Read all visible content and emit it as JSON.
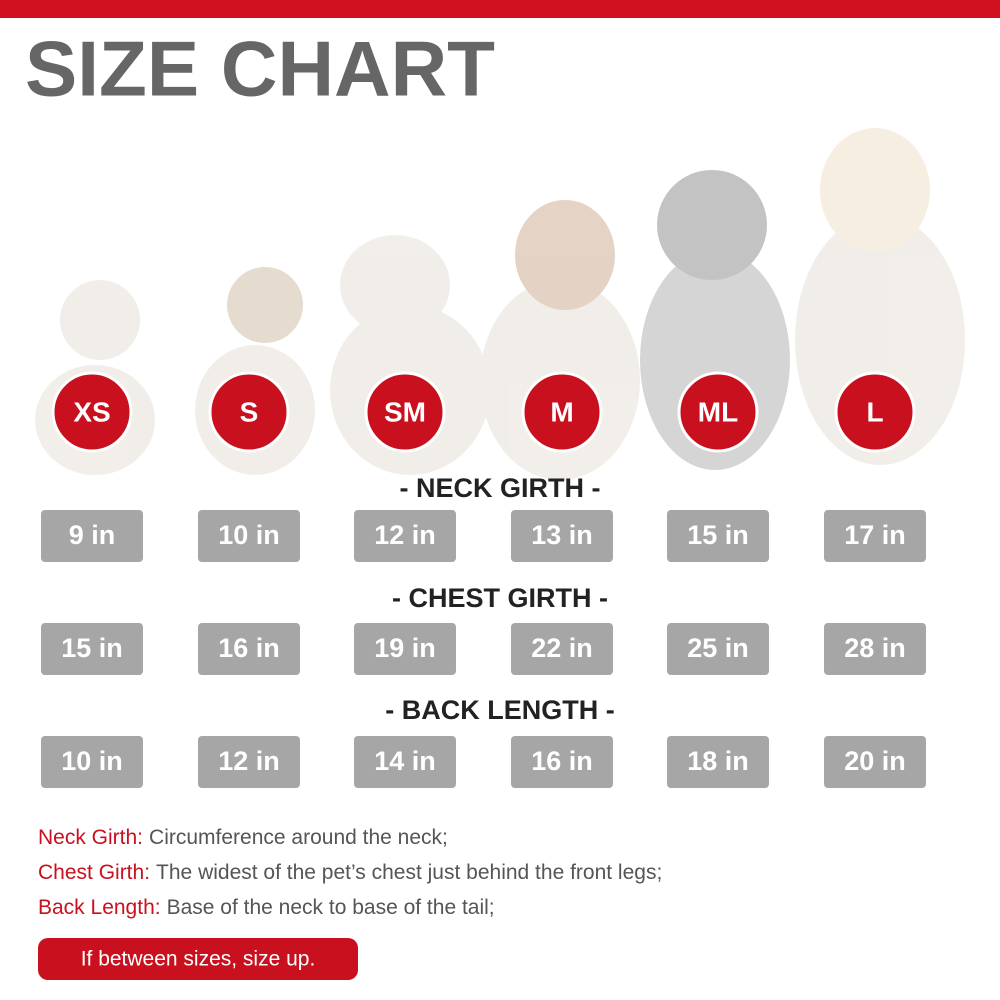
{
  "header": {
    "title": "SIZE CHART"
  },
  "sizes": [
    "XS",
    "S",
    "SM",
    "M",
    "ML",
    "L"
  ],
  "sections": [
    {
      "title": "- NECK GIRTH -",
      "values": [
        "9 in",
        "10 in",
        "12 in",
        "13 in",
        "15 in",
        "17 in"
      ]
    },
    {
      "title": "- CHEST GIRTH -",
      "values": [
        "15 in",
        "16 in",
        "19 in",
        "22 in",
        "25 in",
        "28 in"
      ]
    },
    {
      "title": "- BACK LENGTH -",
      "values": [
        "10 in",
        "12 in",
        "14 in",
        "16 in",
        "18 in",
        "20 in"
      ]
    }
  ],
  "notes": [
    {
      "term": "Neck Girth:",
      "text": "Circumference around the neck;"
    },
    {
      "term": "Chest Girth:",
      "text": "The widest of the pet’s chest just behind the front legs;"
    },
    {
      "term": "Back Length:",
      "text": "Base of the neck to base of the tail;"
    }
  ],
  "tip": "If between sizes, size up."
}
